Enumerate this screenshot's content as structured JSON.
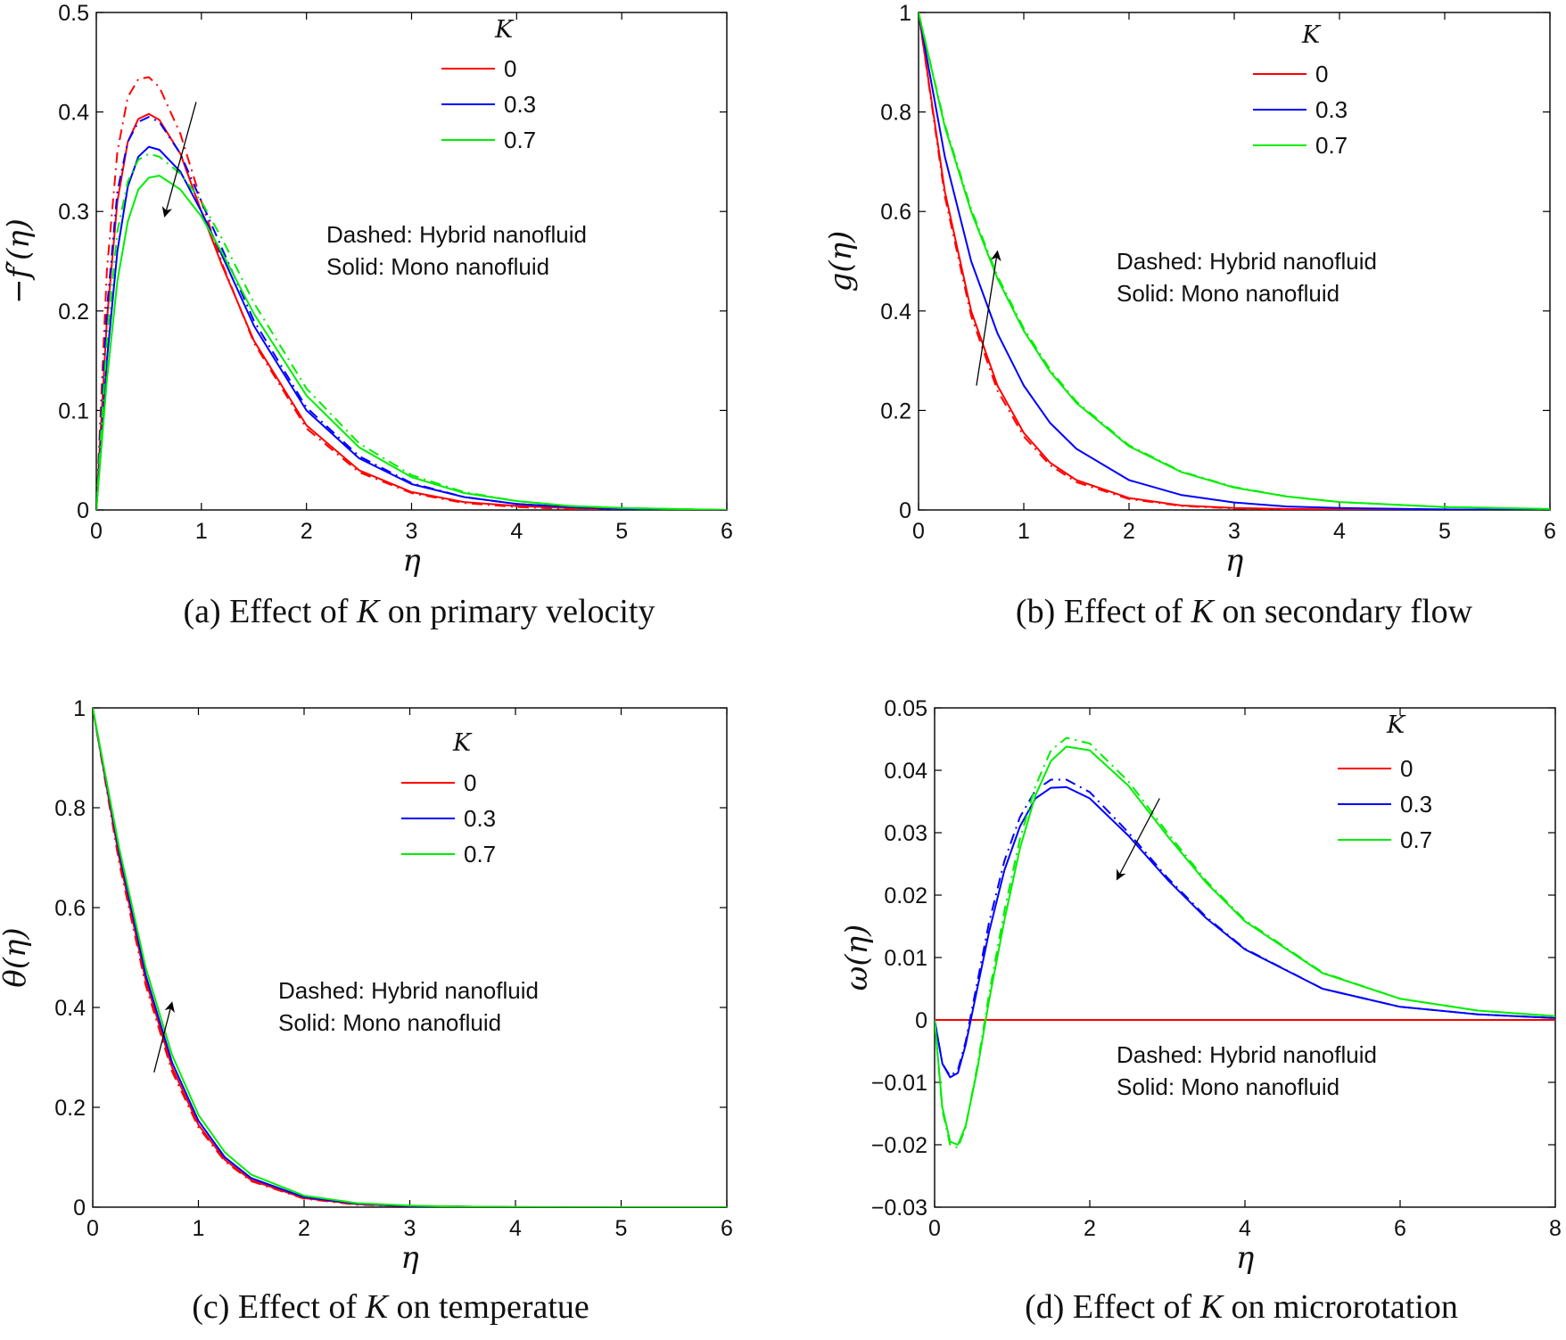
{
  "chart_data": [
    {
      "type": "line",
      "panel": "(a)",
      "caption_prefix": "(a)  Effect of ",
      "caption_var": "K",
      "caption_suffix": " on primary velocity",
      "xlabel": "η",
      "ylabel": "−f′(η)",
      "xlim": [
        0,
        6
      ],
      "ylim": [
        0,
        0.5
      ],
      "xticks": [
        0,
        1,
        2,
        3,
        4,
        5,
        6
      ],
      "yticks": [
        0,
        0.1,
        0.2,
        0.3,
        0.4,
        0.5
      ],
      "legend_title": "K",
      "legend_position": "top-right",
      "note_lines": [
        "Dashed: Hybrid nanofluid",
        "Solid: Mono nanofluid"
      ],
      "arrow": {
        "from": [
          0.95,
          0.41
        ],
        "to": [
          0.65,
          0.295
        ]
      },
      "series": [
        {
          "name": "0",
          "color": "#ff0000",
          "style": "solid",
          "x": [
            0,
            0.1,
            0.2,
            0.3,
            0.4,
            0.5,
            0.6,
            0.8,
            1.0,
            1.2,
            1.5,
            2.0,
            2.5,
            3.0,
            3.5,
            4.0,
            4.5,
            5.0,
            6.0
          ],
          "y": [
            0,
            0.19,
            0.31,
            0.37,
            0.393,
            0.398,
            0.392,
            0.358,
            0.3,
            0.245,
            0.17,
            0.085,
            0.04,
            0.018,
            0.008,
            0.004,
            0.002,
            0.001,
            0
          ]
        },
        {
          "name": "0 (hybrid)",
          "color": "#ff0000",
          "style": "dashed",
          "x": [
            0,
            0.1,
            0.2,
            0.3,
            0.4,
            0.5,
            0.6,
            0.8,
            1.0,
            1.2,
            1.5,
            2.0,
            2.5,
            3.0,
            3.5,
            4.0,
            4.5,
            5.0,
            6.0
          ],
          "y": [
            0,
            0.24,
            0.36,
            0.415,
            0.433,
            0.435,
            0.425,
            0.378,
            0.31,
            0.247,
            0.168,
            0.082,
            0.038,
            0.017,
            0.007,
            0.003,
            0.001,
            0.0005,
            0
          ]
        },
        {
          "name": "0.3",
          "color": "#0000ff",
          "style": "solid",
          "x": [
            0,
            0.1,
            0.2,
            0.3,
            0.4,
            0.5,
            0.6,
            0.8,
            1.0,
            1.2,
            1.5,
            2.0,
            2.5,
            3.0,
            3.5,
            4.0,
            4.5,
            5.0,
            6.0
          ],
          "y": [
            0,
            0.15,
            0.26,
            0.325,
            0.355,
            0.365,
            0.362,
            0.34,
            0.3,
            0.255,
            0.185,
            0.1,
            0.052,
            0.026,
            0.013,
            0.006,
            0.003,
            0.001,
            0
          ]
        },
        {
          "name": "0.3 (hybrid)",
          "color": "#0000ff",
          "style": "dashed",
          "x": [
            0,
            0.1,
            0.2,
            0.3,
            0.4,
            0.5,
            0.6,
            0.8,
            1.0,
            1.2,
            1.5,
            2.0,
            2.5,
            3.0,
            3.5,
            4.0,
            4.5,
            5.0,
            6.0
          ],
          "y": [
            0,
            0.2,
            0.32,
            0.37,
            0.39,
            0.395,
            0.39,
            0.358,
            0.31,
            0.262,
            0.19,
            0.103,
            0.054,
            0.027,
            0.013,
            0.006,
            0.003,
            0.001,
            0
          ]
        },
        {
          "name": "0.7",
          "color": "#00ee00",
          "style": "solid",
          "x": [
            0,
            0.1,
            0.2,
            0.3,
            0.4,
            0.5,
            0.6,
            0.8,
            1.0,
            1.2,
            1.5,
            2.0,
            2.5,
            3.0,
            3.5,
            4.0,
            4.5,
            5.0,
            6.0
          ],
          "y": [
            0,
            0.13,
            0.23,
            0.29,
            0.322,
            0.334,
            0.336,
            0.322,
            0.295,
            0.258,
            0.197,
            0.115,
            0.063,
            0.033,
            0.017,
            0.009,
            0.004,
            0.002,
            0
          ]
        },
        {
          "name": "0.7 (hybrid)",
          "color": "#00ee00",
          "style": "dashed",
          "x": [
            0,
            0.1,
            0.2,
            0.3,
            0.4,
            0.5,
            0.6,
            0.8,
            1.0,
            1.2,
            1.5,
            2.0,
            2.5,
            3.0,
            3.5,
            4.0,
            4.5,
            5.0,
            6.0
          ],
          "y": [
            0,
            0.17,
            0.28,
            0.33,
            0.352,
            0.358,
            0.355,
            0.338,
            0.31,
            0.272,
            0.208,
            0.122,
            0.067,
            0.035,
            0.018,
            0.009,
            0.004,
            0.002,
            0
          ]
        }
      ]
    },
    {
      "type": "line",
      "panel": "(b)",
      "caption_prefix": "(b)  Effect of ",
      "caption_var": "K",
      "caption_suffix": " on secondary flow",
      "xlabel": "η",
      "ylabel": "g(η)",
      "xlim": [
        0,
        6
      ],
      "ylim": [
        0,
        1
      ],
      "xticks": [
        0,
        1,
        2,
        3,
        4,
        5,
        6
      ],
      "yticks": [
        0,
        0.2,
        0.4,
        0.6,
        0.8,
        1
      ],
      "legend_title": "K",
      "legend_position": "top-right",
      "note_lines": [
        "Dashed: Hybrid nanofluid",
        "Solid: Mono nanofluid"
      ],
      "arrow": {
        "from": [
          0.55,
          0.25
        ],
        "to": [
          0.75,
          0.52
        ]
      },
      "series": [
        {
          "name": "0",
          "color": "#ff0000",
          "style": "solid",
          "x": [
            0,
            0.25,
            0.5,
            0.75,
            1.0,
            1.25,
            1.5,
            2.0,
            2.5,
            3.0,
            3.5,
            4.0,
            5.0,
            6.0
          ],
          "y": [
            1,
            0.64,
            0.4,
            0.25,
            0.155,
            0.095,
            0.06,
            0.024,
            0.009,
            0.004,
            0.002,
            0.001,
            0,
            0
          ]
        },
        {
          "name": "0 (hybrid)",
          "color": "#ff0000",
          "style": "dashed",
          "x": [
            0,
            0.25,
            0.5,
            0.75,
            1.0,
            1.25,
            1.5,
            2.0,
            2.5,
            3.0,
            3.5,
            4.0,
            5.0,
            6.0
          ],
          "y": [
            1,
            0.63,
            0.39,
            0.24,
            0.148,
            0.09,
            0.056,
            0.022,
            0.008,
            0.003,
            0.001,
            0.0005,
            0,
            0
          ]
        },
        {
          "name": "0.3",
          "color": "#0000ff",
          "style": "solid",
          "x": [
            0,
            0.25,
            0.5,
            0.75,
            1.0,
            1.25,
            1.5,
            2.0,
            2.5,
            3.0,
            3.5,
            4.0,
            5.0,
            6.0
          ],
          "y": [
            1,
            0.71,
            0.5,
            0.355,
            0.25,
            0.175,
            0.123,
            0.06,
            0.03,
            0.015,
            0.007,
            0.004,
            0.001,
            0
          ]
        },
        {
          "name": "0.7",
          "color": "#00ee00",
          "style": "solid",
          "x": [
            0,
            0.25,
            0.5,
            0.75,
            1.0,
            1.25,
            1.5,
            2.0,
            2.5,
            3.0,
            3.5,
            4.0,
            5.0,
            6.0
          ],
          "y": [
            1,
            0.77,
            0.6,
            0.465,
            0.36,
            0.278,
            0.215,
            0.128,
            0.076,
            0.045,
            0.027,
            0.016,
            0.006,
            0.002
          ]
        },
        {
          "name": "0.7 (hybrid)",
          "color": "#00ee00",
          "style": "dashed",
          "x": [
            0,
            0.25,
            0.5,
            0.75,
            1.0,
            1.25,
            1.5,
            2.0,
            2.5,
            3.0,
            3.5,
            4.0,
            5.0,
            6.0
          ],
          "y": [
            1,
            0.775,
            0.605,
            0.47,
            0.365,
            0.282,
            0.218,
            0.13,
            0.077,
            0.046,
            0.027,
            0.016,
            0.006,
            0.002
          ]
        }
      ]
    },
    {
      "type": "line",
      "panel": "(c)",
      "caption_prefix": "(c)  Effect of ",
      "caption_var": "K",
      "caption_suffix": " on temperatue",
      "xlabel": "η",
      "ylabel": "θ(η)",
      "xlim": [
        0,
        6
      ],
      "ylim": [
        0,
        1
      ],
      "xticks": [
        0,
        1,
        2,
        3,
        4,
        5,
        6
      ],
      "yticks": [
        0,
        0.2,
        0.4,
        0.6,
        0.8,
        1
      ],
      "legend_title": "K",
      "legend_position": "top-right",
      "note_lines": [
        "Dashed: Hybrid nanofluid",
        "Solid: Mono nanofluid"
      ],
      "arrow": {
        "from": [
          0.58,
          0.27
        ],
        "to": [
          0.75,
          0.41
        ]
      },
      "series": [
        {
          "name": "0",
          "color": "#ff0000",
          "style": "solid",
          "x": [
            0,
            0.25,
            0.5,
            0.75,
            1.0,
            1.25,
            1.5,
            2.0,
            2.5,
            3.0,
            3.5,
            4.0,
            5.0,
            6.0
          ],
          "y": [
            1,
            0.7,
            0.455,
            0.28,
            0.165,
            0.095,
            0.054,
            0.018,
            0.006,
            0.002,
            0.001,
            0,
            0,
            0
          ]
        },
        {
          "name": "0 (hybrid)",
          "color": "#ff0000",
          "style": "dashed",
          "x": [
            0,
            0.25,
            0.5,
            0.75,
            1.0,
            1.25,
            1.5,
            2.0,
            2.5,
            3.0,
            3.5,
            4.0,
            5.0,
            6.0
          ],
          "y": [
            1,
            0.69,
            0.445,
            0.272,
            0.16,
            0.092,
            0.052,
            0.017,
            0.005,
            0.002,
            0.001,
            0,
            0,
            0
          ]
        },
        {
          "name": "0.3",
          "color": "#0000ff",
          "style": "solid",
          "x": [
            0,
            0.25,
            0.5,
            0.75,
            1.0,
            1.25,
            1.5,
            2.0,
            2.5,
            3.0,
            3.5,
            4.0,
            5.0,
            6.0
          ],
          "y": [
            1,
            0.71,
            0.465,
            0.29,
            0.173,
            0.1,
            0.058,
            0.02,
            0.007,
            0.002,
            0.001,
            0,
            0,
            0
          ]
        },
        {
          "name": "0.7",
          "color": "#00ee00",
          "style": "solid",
          "x": [
            0,
            0.25,
            0.5,
            0.75,
            1.0,
            1.25,
            1.5,
            2.0,
            2.5,
            3.0,
            3.5,
            4.0,
            5.0,
            6.0
          ],
          "y": [
            1,
            0.72,
            0.48,
            0.305,
            0.185,
            0.11,
            0.065,
            0.023,
            0.008,
            0.003,
            0.001,
            0.0005,
            0,
            0
          ]
        }
      ]
    },
    {
      "type": "line",
      "panel": "(d)",
      "caption_prefix": "(d)  Effect of ",
      "caption_var": "K",
      "caption_suffix": " on microrotation",
      "xlabel": "η",
      "ylabel": "ω(η)",
      "xlim": [
        0,
        8
      ],
      "ylim": [
        -0.03,
        0.05
      ],
      "xticks": [
        0,
        2,
        4,
        6,
        8
      ],
      "yticks": [
        -0.03,
        -0.02,
        -0.01,
        0,
        0.01,
        0.02,
        0.03,
        0.04,
        0.05
      ],
      "ytick_labels": [
        "−0.03",
        "−0.02",
        "−0.01",
        "0",
        "0.01",
        "0.02",
        "0.03",
        "0.04",
        "0.05"
      ],
      "legend_title": "K",
      "legend_position": "top-right",
      "note_lines": [
        "Dashed: Hybrid nanofluid",
        "Solid: Mono nanofluid"
      ],
      "arrow": {
        "from": [
          2.9,
          0.0355
        ],
        "to": [
          2.35,
          0.0225
        ]
      },
      "series": [
        {
          "name": "0",
          "color": "#ff0000",
          "style": "solid",
          "x": [
            0,
            8
          ],
          "y": [
            0,
            0
          ]
        },
        {
          "name": "0.3",
          "color": "#0000ff",
          "style": "solid",
          "x": [
            0,
            0.1,
            0.2,
            0.3,
            0.4,
            0.55,
            0.7,
            0.9,
            1.1,
            1.3,
            1.5,
            1.7,
            2.0,
            2.5,
            3.0,
            3.5,
            4.0,
            5.0,
            6.0,
            7.0,
            8.0
          ],
          "y": [
            0,
            -0.007,
            -0.0092,
            -0.0085,
            -0.004,
            0.005,
            0.014,
            0.024,
            0.031,
            0.0355,
            0.0372,
            0.0373,
            0.0355,
            0.0295,
            0.0225,
            0.0163,
            0.0113,
            0.005,
            0.0021,
            0.0009,
            0.0003
          ]
        },
        {
          "name": "0.3 (hybrid)",
          "color": "#0000ff",
          "style": "dashed",
          "x": [
            0,
            0.1,
            0.2,
            0.3,
            0.4,
            0.55,
            0.7,
            0.9,
            1.1,
            1.3,
            1.5,
            1.7,
            2.0,
            2.5,
            3.0,
            3.5,
            4.0,
            5.0,
            6.0,
            7.0,
            8.0
          ],
          "y": [
            0,
            -0.007,
            -0.009,
            -0.008,
            -0.0035,
            0.006,
            0.0155,
            0.0255,
            0.0325,
            0.0368,
            0.0385,
            0.0385,
            0.0365,
            0.03,
            0.0228,
            0.0165,
            0.0114,
            0.005,
            0.0021,
            0.0009,
            0.0003
          ]
        },
        {
          "name": "0.7",
          "color": "#00ee00",
          "style": "solid",
          "x": [
            0,
            0.1,
            0.2,
            0.3,
            0.4,
            0.55,
            0.7,
            0.9,
            1.1,
            1.3,
            1.5,
            1.7,
            2.0,
            2.5,
            3.0,
            3.5,
            4.0,
            5.0,
            6.0,
            7.0,
            8.0
          ],
          "y": [
            0,
            -0.014,
            -0.0195,
            -0.02,
            -0.017,
            -0.008,
            0.003,
            0.016,
            0.0275,
            0.036,
            0.0415,
            0.0438,
            0.0432,
            0.0375,
            0.0295,
            0.022,
            0.0158,
            0.0075,
            0.0034,
            0.0015,
            0.0006
          ]
        },
        {
          "name": "0.7 (hybrid)",
          "color": "#00ee00",
          "style": "dashed",
          "x": [
            0,
            0.1,
            0.2,
            0.3,
            0.4,
            0.55,
            0.7,
            0.9,
            1.1,
            1.3,
            1.5,
            1.7,
            2.0,
            2.5,
            3.0,
            3.5,
            4.0,
            5.0,
            6.0,
            7.0,
            8.0
          ],
          "y": [
            0,
            -0.0145,
            -0.02,
            -0.0205,
            -0.0172,
            -0.0075,
            0.004,
            0.0175,
            0.029,
            0.0375,
            0.0432,
            0.0452,
            0.0443,
            0.0382,
            0.03,
            0.0223,
            0.016,
            0.0076,
            0.0034,
            0.0015,
            0.0006
          ]
        }
      ]
    }
  ]
}
